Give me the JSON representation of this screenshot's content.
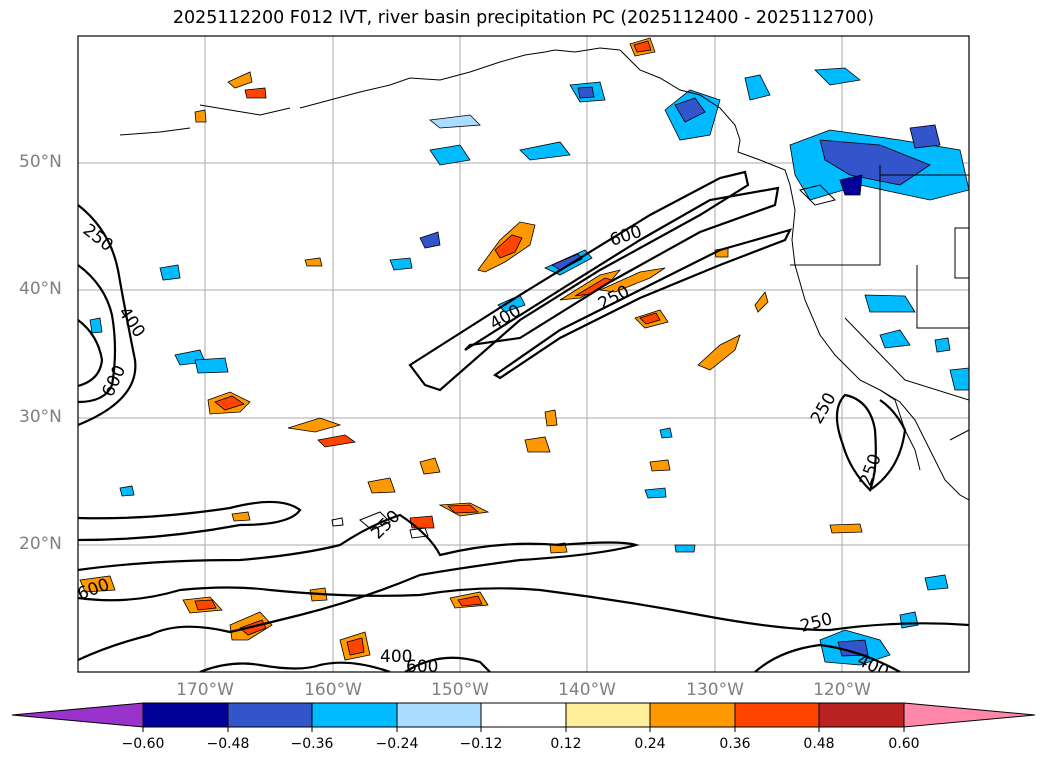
{
  "title": "2025112200 F012 IVT, river basin precipitation PC (2025112400 - 2025112700)",
  "axes": {
    "lat_labels": [
      "50°N",
      "40°N",
      "30°N",
      "20°N"
    ],
    "lon_labels": [
      "170°W",
      "160°W",
      "150°W",
      "140°W",
      "130°W",
      "120°W"
    ]
  },
  "colorbar": {
    "tick_labels": [
      "−0.60",
      "−0.48",
      "−0.36",
      "−0.24",
      "−0.12",
      "0.12",
      "0.24",
      "0.36",
      "0.48",
      "0.60"
    ],
    "colors": [
      "#9933cc",
      "#000099",
      "#3355cc",
      "#00bbff",
      "#aaddff",
      "#ffffff",
      "#ffee99",
      "#ff9900",
      "#ff4400",
      "#bb2222",
      "#ff88aa"
    ]
  },
  "contour_labels": {
    "l1": "250",
    "l2": "400",
    "l3": "600",
    "l4": "600",
    "l5": "400",
    "l6": "250",
    "l7": "250",
    "l8": "250",
    "l9": "250",
    "l10": "600",
    "l11": "400",
    "l12": "600",
    "l13": "250",
    "l14": "400"
  }
}
